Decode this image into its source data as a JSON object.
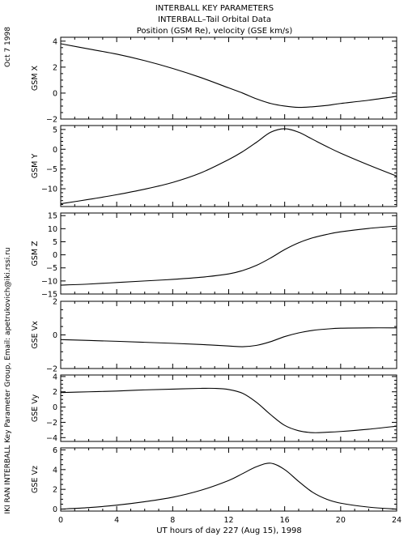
{
  "header": {
    "title": "INTERBALL KEY PARAMETERS",
    "subtitle": "INTERBALL–Tail Orbital Data",
    "subtitle2": "Position (GSM Re), velocity (GSE km/s)",
    "date_stamp": "Oct  7 1998",
    "credit": "IKI RAN INTERBALL Key Parameter Group, Email: apetrukovich@iki.rssi.ru"
  },
  "xaxis": {
    "label": "UT hours of day 227 (Aug 15), 1998",
    "range": [
      0,
      24
    ],
    "ticks": [
      0,
      4,
      8,
      12,
      16,
      20,
      24
    ],
    "tick_labels": [
      "0",
      "4",
      "8",
      "12",
      "16",
      "20",
      "24"
    ]
  },
  "chart_data": {
    "type": "line",
    "grid": false,
    "panels": [
      {
        "ylabel": "GSM X",
        "ylim": [
          -2,
          4.3
        ],
        "yticks": [
          -2,
          0,
          2,
          4
        ],
        "ytick_labels": [
          "−2",
          "0",
          "2",
          "4"
        ],
        "series": [
          {
            "x": [
              0,
              2,
              4,
              6,
              8,
              10,
              12,
              13,
              14,
              15,
              16,
              17,
              18,
              19,
              20,
              22,
              24
            ],
            "y": [
              3.8,
              3.4,
              3.0,
              2.5,
              1.9,
              1.2,
              0.4,
              0.0,
              -0.45,
              -0.8,
              -1.0,
              -1.1,
              -1.05,
              -0.95,
              -0.8,
              -0.55,
              -0.25
            ]
          }
        ]
      },
      {
        "ylabel": "GSM Y",
        "ylim": [
          -14.5,
          6
        ],
        "yticks": [
          -10,
          -5,
          0,
          5
        ],
        "ytick_labels": [
          "−10",
          "−5",
          "0",
          "5"
        ],
        "series": [
          {
            "x": [
              0,
              2,
              4,
              6,
              8,
              10,
              12,
              13,
              14,
              15,
              16,
              17,
              18,
              19,
              20,
              22,
              24
            ],
            "y": [
              -13.8,
              -12.7,
              -11.5,
              -10.1,
              -8.4,
              -6.0,
              -2.6,
              -0.6,
              1.8,
              4.3,
              5.2,
              4.3,
              2.5,
              0.7,
              -1.0,
              -4.0,
              -6.8
            ]
          }
        ]
      },
      {
        "ylabel": "GSM Z",
        "ylim": [
          -15,
          16
        ],
        "yticks": [
          -15,
          -10,
          -5,
          0,
          5,
          10,
          15
        ],
        "ytick_labels": [
          "−15",
          "−10",
          "−5",
          "0",
          "5",
          "10",
          "15"
        ],
        "series": [
          {
            "x": [
              0,
              2,
              4,
              6,
              8,
              10,
              12,
              13,
              14,
              15,
              16,
              17,
              18,
              19,
              20,
              22,
              24
            ],
            "y": [
              -11.6,
              -11.2,
              -10.6,
              -10.0,
              -9.4,
              -8.6,
              -7.3,
              -6.0,
              -4.0,
              -1.2,
              2.0,
              4.6,
              6.5,
              7.8,
              8.8,
              10.1,
              11.0
            ]
          }
        ]
      },
      {
        "ylabel": "GSE Vx",
        "ylim": [
          -2,
          2
        ],
        "yticks": [
          -2,
          0,
          2
        ],
        "ytick_labels": [
          "−2",
          "0",
          "2"
        ],
        "series": [
          {
            "x": [
              0,
              2,
              4,
              6,
              8,
              10,
              12,
              13,
              14,
              15,
              16,
              17,
              18,
              19,
              20,
              22,
              24
            ],
            "y": [
              -0.28,
              -0.33,
              -0.38,
              -0.44,
              -0.5,
              -0.57,
              -0.66,
              -0.7,
              -0.62,
              -0.4,
              -0.1,
              0.12,
              0.27,
              0.35,
              0.4,
              0.42,
              0.42
            ]
          }
        ]
      },
      {
        "ylabel": "GSE Vy",
        "ylim": [
          -4.5,
          4.2
        ],
        "yticks": [
          -4,
          -2,
          0,
          2,
          4
        ],
        "ytick_labels": [
          "−4",
          "−2",
          "0",
          "2",
          "4"
        ],
        "series": [
          {
            "x": [
              0,
              2,
              4,
              6,
              8,
              10,
              11,
              12,
              13,
              14,
              15,
              16,
              17,
              18,
              19,
              20,
              22,
              24
            ],
            "y": [
              1.9,
              2.0,
              2.1,
              2.25,
              2.35,
              2.45,
              2.45,
              2.3,
              1.8,
              0.6,
              -1.0,
              -2.4,
              -3.1,
              -3.35,
              -3.3,
              -3.2,
              -2.9,
              -2.5
            ]
          }
        ]
      },
      {
        "ylabel": "GSE Vz",
        "ylim": [
          -0.2,
          6.2
        ],
        "yticks": [
          0,
          2,
          4,
          6
        ],
        "ytick_labels": [
          "0",
          "2",
          "4",
          "6"
        ],
        "series": [
          {
            "x": [
              0,
              2,
              4,
              6,
              8,
              10,
              12,
              13,
              14,
              15,
              16,
              17,
              18,
              19,
              20,
              22,
              24
            ],
            "y": [
              0.0,
              0.15,
              0.4,
              0.75,
              1.2,
              1.9,
              2.9,
              3.6,
              4.3,
              4.65,
              4.0,
              2.8,
              1.7,
              1.0,
              0.6,
              0.2,
              0.0
            ]
          }
        ]
      }
    ]
  }
}
